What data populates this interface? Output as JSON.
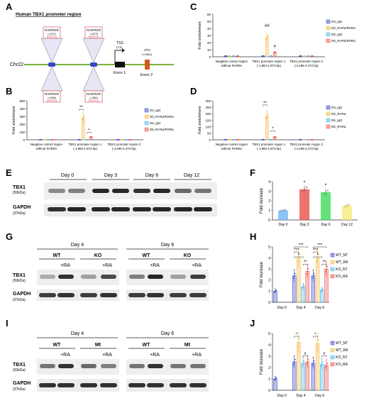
{
  "panel_labels": [
    "A",
    "B",
    "C",
    "D",
    "E",
    "F",
    "G",
    "H",
    "I",
    "J"
  ],
  "colors": {
    "blue": "#3b47c9",
    "orange": "#f5b73c",
    "cyan": "#49b7ea",
    "red": "#e8504a",
    "green": "#3ddc5a",
    "yellow": "#f7ec7a",
    "sky": "#6fb6f2"
  },
  "panel_a": {
    "title": "Human TBX1 promoter region",
    "chr": "Chr22",
    "tss_label": "TSS",
    "tss_pos": "(+1)",
    "exon1": "Exon 1",
    "exon2": "Exon 2",
    "atg_label": "ATG",
    "atg_pos": "(+2462)",
    "rare_boxes": [
      {
        "label": "RAR/RXR",
        "pos": "(-4472)",
        "seq": "AGGTCA"
      },
      {
        "label": "RAR/RXR",
        "pos": "(-4496)",
        "seq": "AGGTCA"
      },
      {
        "label": "RAR/RXR",
        "pos": "(-1873)",
        "seq": "AGGTCA"
      },
      {
        "label": "RAR/RXR",
        "pos": "(-1884)",
        "seq": "AGGTCA"
      }
    ]
  },
  "chip_legend_ab": [
    "D3_IgG",
    "D3_RARα/RXRα",
    "D6_IgG",
    "D6_RARα/RXRα"
  ],
  "chip_legend_d": [
    "D3_IgG",
    "D3_RARα",
    "D6_IgG",
    "D6_RARα"
  ],
  "chip_categories": [
    "Negative control region without RAREs",
    "TBX1 promoter region 1 (-1,884-1,873 bp)",
    "TBX1 promoter region 2 (-4,496-4,472 bp)"
  ],
  "chip_category_lines": [
    [
      "Negative control region",
      "without RAREs"
    ],
    [
      "TBX1 promoter region 1",
      "(-1,884-1,873 bp)"
    ],
    [
      "TBX1 promoter region 2",
      "(-4,496-4,472 bp)"
    ]
  ],
  "fold_enrichment_label": "Fold enrichment",
  "fold_increase_label": "Fold increase",
  "western": {
    "tbx1": "TBX1",
    "tbx1_kda": "(50kDa)",
    "gapdh": "GAPDH",
    "gapdh_kda": "(37kDa)",
    "e_days": [
      "Day 0",
      "Day 3",
      "Day 6",
      "Day 12"
    ],
    "g_days": [
      "Day 4",
      "Day 6"
    ],
    "g_groups": [
      "WT",
      "KO",
      "WT",
      "KO"
    ],
    "i_groups": [
      "WT",
      "Mt",
      "WT",
      "Mt"
    ],
    "ra": "+RA"
  },
  "expr_legend_h": [
    "WT_NT",
    "WT_RA",
    "KO_NT",
    "KO_RA"
  ],
  "expr_legend_j": [
    "WT_NT",
    "WT_RA",
    "KO_NT",
    "KO_RA"
  ],
  "expr_days": [
    "Day 0",
    "Day 4",
    "Day 6"
  ],
  "chart_data": [
    {
      "panel": "B",
      "type": "bar",
      "categories": [
        "Negative control region without RAREs",
        "TBX1 promoter region 1 (-1,884-1,873 bp)",
        "TBX1 promoter region 2 (-4,496-4,472 bp)"
      ],
      "ylabel": "Fold enrichment",
      "ylim": [
        0,
        500
      ],
      "yticks": [
        0,
        100,
        200,
        300,
        400,
        500
      ],
      "series": [
        {
          "name": "D3_IgG",
          "values": [
            1,
            1,
            1
          ]
        },
        {
          "name": "D3_RARα/RXRα",
          "values": [
            1,
            280,
            1
          ]
        },
        {
          "name": "D6_IgG",
          "values": [
            1,
            1,
            1
          ]
        },
        {
          "name": "D6_RARα/RXRα",
          "values": [
            1,
            35,
            1
          ]
        }
      ],
      "annotations": [
        "**",
        "*"
      ]
    },
    {
      "panel": "C",
      "type": "bar",
      "categories": [
        "Negative control region without RAREs",
        "TBX1 promoter region 1 (-1,884-1,873 bp)",
        "TBX1 promoter region 2 (-4,496-4,472 bp)"
      ],
      "ylabel": "Fold enrichment",
      "ylim": [
        0,
        60
      ],
      "yticks": [
        0,
        10,
        20,
        30,
        40,
        50,
        60
      ],
      "series": [
        {
          "name": "D3_IgG",
          "values": [
            1,
            1,
            1
          ]
        },
        {
          "name": "D3_RARα/RXRα",
          "values": [
            1,
            27,
            1
          ]
        },
        {
          "name": "D6_IgG",
          "values": [
            1,
            1,
            1
          ]
        },
        {
          "name": "D6_RARα/RXRα",
          "values": [
            1,
            6,
            1
          ]
        }
      ],
      "annotations": [
        "##",
        "#"
      ]
    },
    {
      "panel": "D",
      "type": "bar",
      "categories": [
        "Negative control region without RAREs",
        "TBX1 promoter region 1 (-1,884-1,873 bp)",
        "TBX1 promoter region 2 (-4,496-4,472 bp)"
      ],
      "ylabel": "Fold enrichment",
      "ylim": [
        0,
        300
      ],
      "yticks": [
        0,
        50,
        100,
        150,
        200,
        250,
        300
      ],
      "series": [
        {
          "name": "D3_IgG",
          "values": [
            1,
            1,
            1
          ]
        },
        {
          "name": "D3_RARα",
          "values": [
            1,
            180,
            1
          ]
        },
        {
          "name": "D6_IgG",
          "values": [
            1,
            1,
            1
          ]
        },
        {
          "name": "D6_RARα",
          "values": [
            1,
            20,
            1
          ]
        }
      ],
      "annotations": [
        "**",
        "*"
      ]
    },
    {
      "panel": "F",
      "type": "bar",
      "categories": [
        "Day 0",
        "Day 3",
        "Day 6",
        "Day 12"
      ],
      "ylabel": "Fold increase",
      "ylim": [
        0,
        4
      ],
      "yticks": [
        0,
        1,
        2,
        3,
        4
      ],
      "values": [
        1.0,
        3.2,
        2.9,
        1.5
      ],
      "annotations": [
        "*",
        "*"
      ]
    },
    {
      "panel": "H",
      "type": "bar",
      "categories": [
        "Day 0",
        "Day 4",
        "Day 6"
      ],
      "ylabel": "Fold increase",
      "ylim": [
        0,
        5
      ],
      "yticks": [
        0,
        1,
        2,
        3,
        4,
        5
      ],
      "series": [
        {
          "name": "WT_NT",
          "values": [
            1.0,
            2.4,
            2.4
          ]
        },
        {
          "name": "WT_RA",
          "values": [
            null,
            4.0,
            4.0
          ]
        },
        {
          "name": "KO_NT",
          "values": [
            null,
            1.4,
            1.1
          ]
        },
        {
          "name": "KO_RA",
          "values": [
            null,
            2.8,
            3.0
          ]
        }
      ],
      "annotations": [
        "***",
        "***",
        "*",
        "**",
        "***",
        "***",
        "*",
        "**"
      ]
    },
    {
      "panel": "J",
      "type": "bar",
      "categories": [
        "Day 0",
        "Day 4",
        "Day 6"
      ],
      "ylabel": "Fold increase",
      "ylim": [
        0,
        5
      ],
      "yticks": [
        0,
        1,
        2,
        3,
        4,
        5
      ],
      "series": [
        {
          "name": "WT_NT",
          "values": [
            1.0,
            2.5,
            2.4
          ]
        },
        {
          "name": "WT_RA",
          "values": [
            null,
            4.2,
            4.1
          ]
        },
        {
          "name": "KO_NT",
          "values": [
            null,
            2.4,
            2.3
          ]
        },
        {
          "name": "KO_RA",
          "values": [
            null,
            2.5,
            2.2
          ]
        }
      ],
      "annotations": [
        "*",
        "#",
        "*",
        "#"
      ]
    }
  ]
}
